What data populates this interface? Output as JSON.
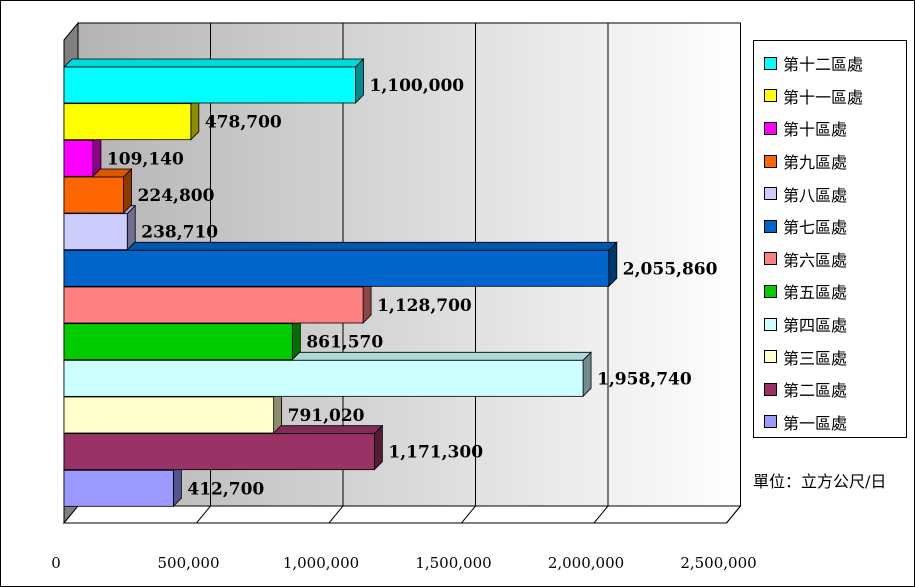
{
  "chart_data": {
    "type": "bar",
    "orientation": "horizontal",
    "categories": [
      "第一區處",
      "第二區處",
      "第三區處",
      "第四區處",
      "第五區處",
      "第六區處",
      "第七區處",
      "第八區處",
      "第九區處",
      "第十區處",
      "第十一區處",
      "第十二區處"
    ],
    "values": [
      412700,
      1171300,
      791020,
      1958740,
      861570,
      1128700,
      2055860,
      238710,
      224800,
      109140,
      478700,
      1100000
    ],
    "data_labels": [
      "412,700",
      "1,171,300",
      "791,020",
      "1,958,740",
      "861,570",
      "1,128,700",
      "2,055,860",
      "238,710",
      "224,800",
      "109,140",
      "478,700",
      "1,100,000"
    ],
    "colors": [
      "#9999ff",
      "#993366",
      "#ffffcc",
      "#ccffff",
      "#00cc00",
      "#ff8080",
      "#0066cc",
      "#ccccff",
      "#ff6600",
      "#ff00ff",
      "#ffff00",
      "#00ffff"
    ],
    "xlim": [
      0,
      2500000
    ],
    "x_ticks": [
      "0",
      "500,000",
      "1,000,000",
      "1,500,000",
      "2,000,000",
      "2,500,000"
    ],
    "legend_order": [
      11,
      10,
      9,
      8,
      7,
      6,
      5,
      4,
      3,
      2,
      1,
      0
    ],
    "legend_position": "right",
    "grid": true,
    "unit_label": "單位：立方公尺/日",
    "style_3d": true
  }
}
